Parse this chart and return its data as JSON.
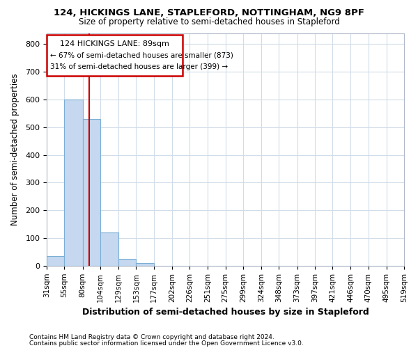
{
  "title": "124, HICKINGS LANE, STAPLEFORD, NOTTINGHAM, NG9 8PF",
  "subtitle": "Size of property relative to semi-detached houses in Stapleford",
  "xlabel": "Distribution of semi-detached houses by size in Stapleford",
  "ylabel": "Number of semi-detached properties",
  "footer_line1": "Contains HM Land Registry data © Crown copyright and database right 2024.",
  "footer_line2": "Contains public sector information licensed under the Open Government Licence v3.0.",
  "annotation_line1": "124 HICKINGS LANE: 89sqm",
  "annotation_line2": "← 67% of semi-detached houses are smaller (873)",
  "annotation_line3": "31% of semi-detached houses are larger (399) →",
  "bin_edges": [
    31,
    55,
    80,
    104,
    129,
    153,
    177,
    202,
    226,
    251,
    275,
    299,
    324,
    348,
    373,
    397,
    421,
    446,
    470,
    495,
    519
  ],
  "bin_counts": [
    35,
    600,
    530,
    120,
    25,
    10,
    0,
    0,
    0,
    0,
    0,
    0,
    0,
    0,
    0,
    0,
    0,
    0,
    0,
    0
  ],
  "bar_color": "#c5d8ef",
  "bar_edge_color": "#7bafd4",
  "vline_color": "#cc0000",
  "vline_x": 89,
  "ylim": [
    0,
    840
  ],
  "yticks": [
    0,
    100,
    200,
    300,
    400,
    500,
    600,
    700,
    800
  ],
  "annotation_box_color": "#cc0000",
  "background_color": "#ffffff",
  "grid_color": "#d0dce8"
}
